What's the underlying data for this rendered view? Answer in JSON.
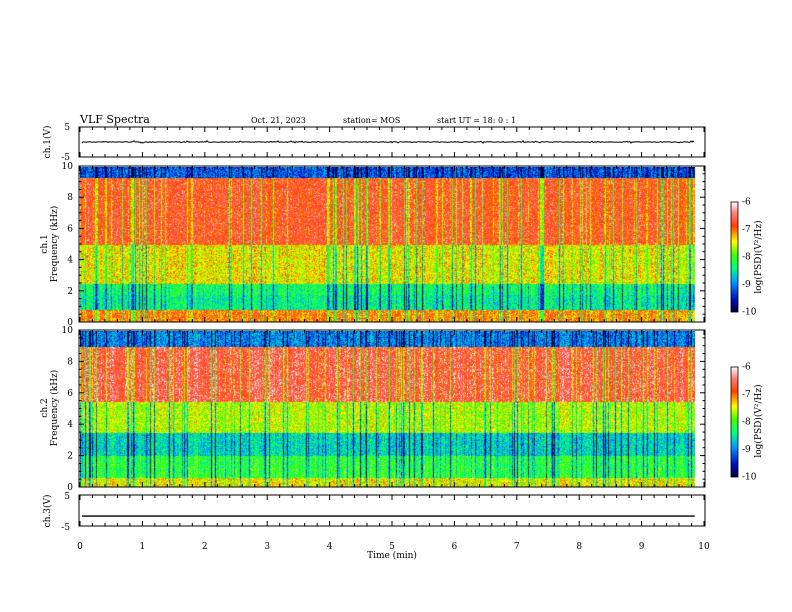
{
  "header": {
    "title": "VLF Spectra",
    "date": "Oct. 21, 2023",
    "station": "station= MOS",
    "start": "start  UT =   18: 0  : 1"
  },
  "colors": {
    "colormap": [
      "#0a0a80",
      "#0030ff",
      "#00b0ff",
      "#00e0c0",
      "#40ff40",
      "#c0ff00",
      "#ffff00",
      "#ff9000",
      "#ff2020",
      "#ffc0c0",
      "#ffffff"
    ]
  },
  "chart_data": [
    {
      "type": "line",
      "id": "ch1-waveform",
      "ylabel": "ch.1(V)",
      "ylim": [
        -5,
        5
      ],
      "y_ticks": [
        "5",
        "-5"
      ],
      "baseline": 0,
      "xlim": [
        0,
        10
      ]
    },
    {
      "type": "heatmap",
      "id": "ch1-spectrogram",
      "ylabel": "ch.1\nFrequency (kHz)",
      "ylabel_lines": [
        "ch.1",
        "Frequency (kHz)"
      ],
      "ylim": [
        0,
        10
      ],
      "y_ticks": [
        "0",
        "2",
        "4",
        "6",
        "8",
        "10"
      ],
      "xlim": [
        0,
        10
      ],
      "data_end_min": 9.85,
      "colorbar": {
        "label": "log(PSD)(V²/Hz)",
        "range": [
          -10,
          -6
        ],
        "ticks": [
          "-6",
          "-7",
          "-8",
          "-9",
          "-10"
        ]
      }
    },
    {
      "type": "heatmap",
      "id": "ch2-spectrogram",
      "ylabel": "ch.2\nFrequency (kHz)",
      "ylabel_lines": [
        "ch.2",
        "Frequency (kHz)"
      ],
      "ylim": [
        0,
        10
      ],
      "y_ticks": [
        "0",
        "2",
        "4",
        "6",
        "8",
        "10"
      ],
      "xlim": [
        0,
        10
      ],
      "data_end_min": 9.85,
      "colorbar": {
        "label": "log(PSD)(V²/Hz)",
        "range": [
          -10,
          -6
        ],
        "ticks": [
          "-6",
          "-7",
          "-8",
          "-9",
          "-10"
        ]
      }
    },
    {
      "type": "line",
      "id": "ch3-waveform",
      "ylabel": "ch.3(V)",
      "ylim": [
        -5,
        5
      ],
      "y_ticks": [
        "5",
        "-5"
      ],
      "baseline": -1.8,
      "xlim": [
        0,
        10
      ]
    }
  ],
  "x_axis": {
    "label": "Time  (min)",
    "ticks": [
      "0",
      "1",
      "2",
      "3",
      "4",
      "5",
      "6",
      "7",
      "8",
      "9",
      "10"
    ]
  }
}
